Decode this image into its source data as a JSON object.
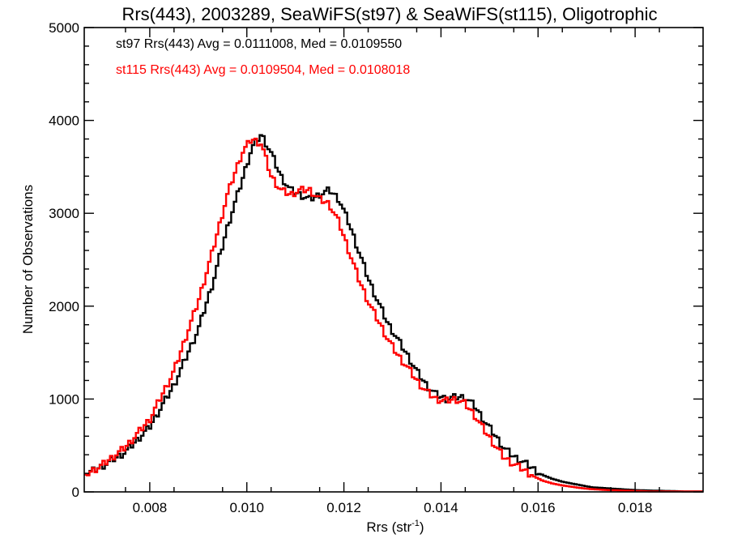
{
  "chart_data": {
    "type": "line",
    "title": "Rrs(443), 2003289, SeaWiFS(st97) & SeaWiFS(st115), Oligotrophic",
    "xlabel_main": "Rrs (str",
    "xlabel_sup": "-1",
    "xlabel_tail": ")",
    "ylabel": "Number of Observations",
    "xlim": [
      0.00665,
      0.0194
    ],
    "ylim": [
      0,
      5000
    ],
    "x_ticks": [
      0.008,
      0.01,
      0.012,
      0.014,
      0.016,
      0.018
    ],
    "x_tick_labels": [
      "0.008",
      "0.010",
      "0.012",
      "0.014",
      "0.016",
      "0.018"
    ],
    "y_ticks": [
      0,
      1000,
      2000,
      3000,
      4000,
      5000
    ],
    "y_tick_labels": [
      "0",
      "1000",
      "2000",
      "3000",
      "4000",
      "5000"
    ],
    "annotations": [
      "st97 Rrs(443) Avg = 0.0111008, Med = 0.0109550",
      "st115 Rrs(443) Avg = 0.0109504, Med = 0.0108018"
    ],
    "colors": {
      "st97": "#000000",
      "st115": "#ff0000"
    },
    "series": [
      {
        "color": "#000000",
        "x": [
          0.00665,
          0.007,
          0.0075,
          0.008,
          0.0085,
          0.009,
          0.0093,
          0.0096,
          0.0099,
          0.0101,
          0.0103,
          0.0105,
          0.0107,
          0.0109,
          0.0111,
          0.0113,
          0.0115,
          0.0117,
          0.0119,
          0.0121,
          0.0123,
          0.0125,
          0.0127,
          0.0129,
          0.0131,
          0.0133,
          0.0135,
          0.0137,
          0.0139,
          0.0141,
          0.0143,
          0.0145,
          0.0147,
          0.0149,
          0.0151,
          0.0153,
          0.0155,
          0.0157,
          0.0159,
          0.0161,
          0.0163,
          0.0165,
          0.0167,
          0.0169,
          0.0171,
          0.0174,
          0.0177,
          0.018,
          0.0183,
          0.0187,
          0.019,
          0.0194
        ],
        "y": [
          180,
          270,
          430,
          700,
          1150,
          1750,
          2250,
          2850,
          3350,
          3700,
          3850,
          3650,
          3400,
          3250,
          3200,
          3150,
          3200,
          3250,
          3150,
          2900,
          2600,
          2300,
          2050,
          1820,
          1650,
          1480,
          1300,
          1150,
          1050,
          1000,
          1020,
          1020,
          920,
          760,
          620,
          470,
          380,
          320,
          250,
          180,
          140,
          110,
          90,
          70,
          50,
          40,
          30,
          20,
          15,
          10,
          5,
          5
        ]
      },
      {
        "color": "#ff0000",
        "x": [
          0.00665,
          0.007,
          0.0075,
          0.008,
          0.0085,
          0.009,
          0.0093,
          0.0096,
          0.0099,
          0.0101,
          0.0103,
          0.0105,
          0.0107,
          0.0109,
          0.0111,
          0.0113,
          0.0115,
          0.0117,
          0.0119,
          0.0121,
          0.0123,
          0.0125,
          0.0127,
          0.0129,
          0.0131,
          0.0133,
          0.0135,
          0.0137,
          0.0139,
          0.0141,
          0.0143,
          0.0145,
          0.0147,
          0.0149,
          0.0151,
          0.0153,
          0.0155,
          0.0157,
          0.0159,
          0.0161,
          0.0163,
          0.0165,
          0.0167,
          0.0169,
          0.0171,
          0.0174,
          0.0177,
          0.018,
          0.0183,
          0.0187,
          0.019,
          0.0194
        ],
        "y": [
          180,
          280,
          480,
          780,
          1300,
          2050,
          2600,
          3200,
          3650,
          3800,
          3750,
          3400,
          3250,
          3200,
          3250,
          3250,
          3150,
          3100,
          2900,
          2600,
          2300,
          2050,
          1850,
          1650,
          1480,
          1350,
          1200,
          1080,
          1000,
          980,
          1000,
          950,
          820,
          660,
          510,
          370,
          300,
          240,
          170,
          120,
          90,
          70,
          55,
          40,
          30,
          20,
          15,
          10,
          5,
          5,
          5,
          5
        ]
      }
    ]
  }
}
